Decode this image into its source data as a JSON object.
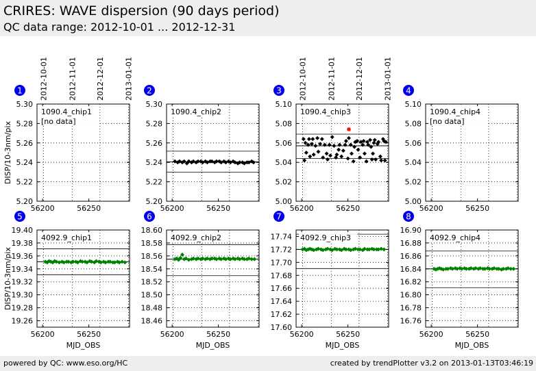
{
  "header": {
    "title": "CRIRES: WAVE dispersion (90 days period)",
    "range": "QC data range: 2012-10-01 ... 2012-12-31"
  },
  "footer": {
    "left": "powered by QC: www.eso.org/HC",
    "right": "created by trendPlotter v3.2 on 2013-01-13T03:46:19"
  },
  "colors": {
    "set1": "#000000",
    "set2": "#008000",
    "outlier": "#ff0000",
    "badge": "#0000ee"
  },
  "date_ticks": [
    "2012-10-01",
    "2012-11-01",
    "2012-12-01",
    "2013-01-01"
  ],
  "chart_data": [
    {
      "type": "scatter",
      "panel": "1",
      "label": "1090.4_chip1",
      "note": "[no data]",
      "ylabel": "DISP/10-3nm/pix",
      "xlabel": "",
      "ylim": [
        5.2,
        5.3
      ],
      "yticks": [
        "5.30",
        "5.28",
        "5.26",
        "5.24",
        "5.22",
        "5.20"
      ],
      "xlim": [
        56194,
        56294
      ],
      "xticks": [
        "56200",
        "56250"
      ],
      "mean": null,
      "band": null,
      "points": [],
      "outliers": []
    },
    {
      "type": "scatter",
      "panel": "2",
      "label": "1090.4_chip2",
      "note": "",
      "ylabel": "",
      "xlabel": "",
      "ylim": [
        5.2,
        5.3
      ],
      "yticks": [
        "5.30",
        "5.28",
        "5.26",
        "5.24",
        "5.22",
        "5.20"
      ],
      "xlim": [
        56194,
        56294
      ],
      "xticks": [
        "56200",
        "56250"
      ],
      "mean": 5.2405,
      "band": [
        5.23,
        5.2515
      ],
      "points": [
        [
          56203,
          5.241
        ],
        [
          56206,
          5.24
        ],
        [
          56208,
          5.241
        ],
        [
          56211,
          5.24
        ],
        [
          56213,
          5.241
        ],
        [
          56216,
          5.239
        ],
        [
          56218,
          5.241
        ],
        [
          56221,
          5.24
        ],
        [
          56223,
          5.241
        ],
        [
          56226,
          5.24
        ],
        [
          56228,
          5.241
        ],
        [
          56231,
          5.241
        ],
        [
          56233,
          5.24
        ],
        [
          56236,
          5.241
        ],
        [
          56238,
          5.24
        ],
        [
          56241,
          5.241
        ],
        [
          56243,
          5.241
        ],
        [
          56246,
          5.24
        ],
        [
          56248,
          5.241
        ],
        [
          56251,
          5.241
        ],
        [
          56253,
          5.24
        ],
        [
          56256,
          5.241
        ],
        [
          56258,
          5.24
        ],
        [
          56261,
          5.241
        ],
        [
          56263,
          5.24
        ],
        [
          56266,
          5.241
        ],
        [
          56268,
          5.24
        ],
        [
          56271,
          5.239
        ],
        [
          56273,
          5.24
        ],
        [
          56276,
          5.24
        ],
        [
          56278,
          5.239
        ],
        [
          56281,
          5.24
        ],
        [
          56283,
          5.24
        ],
        [
          56286,
          5.241
        ],
        [
          56288,
          5.24
        ]
      ],
      "outliers": []
    },
    {
      "type": "scatter",
      "panel": "3",
      "label": "1090.4_chip3",
      "note": "",
      "ylabel": "",
      "xlabel": "",
      "ylim": [
        5.0,
        5.1
      ],
      "yticks": [
        "5.10",
        "5.08",
        "5.06",
        "5.04",
        "5.02",
        "5.00"
      ],
      "xlim": [
        56194,
        56294
      ],
      "xticks": [
        "56200",
        "56250"
      ],
      "mean": 5.057,
      "band": [
        5.044,
        5.069
      ],
      "points": [
        [
          56202,
          5.064
        ],
        [
          56203,
          5.042
        ],
        [
          56204,
          5.06
        ],
        [
          56205,
          5.05
        ],
        [
          56207,
          5.058
        ],
        [
          56208,
          5.064
        ],
        [
          56209,
          5.046
        ],
        [
          56211,
          5.059
        ],
        [
          56212,
          5.064
        ],
        [
          56213,
          5.048
        ],
        [
          56215,
          5.057
        ],
        [
          56217,
          5.065
        ],
        [
          56218,
          5.051
        ],
        [
          56220,
          5.059
        ],
        [
          56222,
          5.064
        ],
        [
          56223,
          5.045
        ],
        [
          56225,
          5.058
        ],
        [
          56227,
          5.049
        ],
        [
          56228,
          5.043
        ],
        [
          56230,
          5.058
        ],
        [
          56231,
          5.047
        ],
        [
          56233,
          5.066
        ],
        [
          56235,
          5.057
        ],
        [
          56237,
          5.045
        ],
        [
          56238,
          5.048
        ],
        [
          56240,
          5.053
        ],
        [
          56241,
          5.058
        ],
        [
          56243,
          5.046
        ],
        [
          56245,
          5.052
        ],
        [
          56247,
          5.058
        ],
        [
          56248,
          5.062
        ],
        [
          56250,
          5.044
        ],
        [
          56251,
          5.065
        ],
        [
          56253,
          5.058
        ],
        [
          56254,
          5.049
        ],
        [
          56256,
          5.041
        ],
        [
          56257,
          5.056
        ],
        [
          56258,
          5.061
        ],
        [
          56260,
          5.062
        ],
        [
          56261,
          5.053
        ],
        [
          56263,
          5.045
        ],
        [
          56264,
          5.061
        ],
        [
          56266,
          5.058
        ],
        [
          56267,
          5.062
        ],
        [
          56268,
          5.049
        ],
        [
          56270,
          5.041
        ],
        [
          56271,
          5.061
        ],
        [
          56272,
          5.058
        ],
        [
          56274,
          5.063
        ],
        [
          56275,
          5.056
        ],
        [
          56276,
          5.043
        ],
        [
          56277,
          5.049
        ],
        [
          56278,
          5.06
        ],
        [
          56279,
          5.063
        ],
        [
          56280,
          5.043
        ],
        [
          56282,
          5.059
        ],
        [
          56283,
          5.061
        ],
        [
          56285,
          5.046
        ],
        [
          56286,
          5.042
        ],
        [
          56288,
          5.064
        ],
        [
          56289,
          5.062
        ],
        [
          56290,
          5.042
        ],
        [
          56291,
          5.061
        ]
      ],
      "outliers": [
        [
          56251,
          5.074
        ]
      ]
    },
    {
      "type": "scatter",
      "panel": "4",
      "label": "1090.4_chip4",
      "note": "[no data]",
      "ylabel": "",
      "xlabel": "",
      "ylim": [
        5.0,
        5.1
      ],
      "yticks": [
        "5.10",
        "5.08",
        "5.06",
        "5.04",
        "5.02",
        "5.00"
      ],
      "xlim": [
        56194,
        56294
      ],
      "xticks": [
        "56200",
        "56250"
      ],
      "mean": null,
      "band": null,
      "points": [],
      "outliers": []
    },
    {
      "type": "scatter",
      "panel": "5",
      "label": "4092.9_chip1",
      "note": "",
      "ylabel": "DISP/10-3nm/pix",
      "xlabel": "MJD_OBS",
      "ylim": [
        19.25,
        19.4
      ],
      "yticks": [
        "19.40",
        "19.38",
        "19.36",
        "19.34",
        "19.32",
        "19.30",
        "19.28",
        "19.26"
      ],
      "xlim": [
        56194,
        56294
      ],
      "xticks": [
        "56200",
        "56250"
      ],
      "mean": 19.351,
      "band": [
        19.331,
        19.371
      ],
      "points": [
        [
          56203,
          19.351
        ],
        [
          56205,
          19.35
        ],
        [
          56207,
          19.352
        ],
        [
          56209,
          19.351
        ],
        [
          56211,
          19.35
        ],
        [
          56213,
          19.352
        ],
        [
          56215,
          19.351
        ],
        [
          56218,
          19.35
        ],
        [
          56221,
          19.351
        ],
        [
          56223,
          19.35
        ],
        [
          56226,
          19.351
        ],
        [
          56228,
          19.351
        ],
        [
          56231,
          19.35
        ],
        [
          56233,
          19.351
        ],
        [
          56236,
          19.351
        ],
        [
          56238,
          19.35
        ],
        [
          56241,
          19.352
        ],
        [
          56243,
          19.351
        ],
        [
          56246,
          19.351
        ],
        [
          56248,
          19.35
        ],
        [
          56251,
          19.352
        ],
        [
          56253,
          19.351
        ],
        [
          56256,
          19.35
        ],
        [
          56258,
          19.352
        ],
        [
          56261,
          19.351
        ],
        [
          56263,
          19.35
        ],
        [
          56266,
          19.351
        ],
        [
          56268,
          19.35
        ],
        [
          56271,
          19.351
        ],
        [
          56273,
          19.351
        ],
        [
          56276,
          19.35
        ],
        [
          56278,
          19.35
        ],
        [
          56281,
          19.351
        ],
        [
          56283,
          19.35
        ],
        [
          56286,
          19.351
        ],
        [
          56289,
          19.35
        ]
      ],
      "outliers": []
    },
    {
      "type": "scatter",
      "panel": "6",
      "label": "4092.9_chip2",
      "note": "",
      "ylabel": "",
      "xlabel": "MJD_OBS",
      "ylim": [
        18.45,
        18.6
      ],
      "yticks": [
        "18.60",
        "18.58",
        "18.56",
        "18.54",
        "18.52",
        "18.50",
        "18.48",
        "18.46"
      ],
      "xlim": [
        56194,
        56294
      ],
      "xticks": [
        "56200",
        "56250"
      ],
      "mean": 18.555,
      "band": [
        18.5295,
        18.5775
      ],
      "points": [
        [
          56203,
          18.555
        ],
        [
          56205,
          18.556
        ],
        [
          56207,
          18.554
        ],
        [
          56209,
          18.557
        ],
        [
          56211,
          18.562
        ],
        [
          56213,
          18.555
        ],
        [
          56215,
          18.556
        ],
        [
          56218,
          18.554
        ],
        [
          56221,
          18.555
        ],
        [
          56223,
          18.556
        ],
        [
          56226,
          18.555
        ],
        [
          56228,
          18.556
        ],
        [
          56231,
          18.555
        ],
        [
          56233,
          18.556
        ],
        [
          56236,
          18.555
        ],
        [
          56238,
          18.556
        ],
        [
          56241,
          18.555
        ],
        [
          56243,
          18.556
        ],
        [
          56246,
          18.556
        ],
        [
          56248,
          18.555
        ],
        [
          56251,
          18.556
        ],
        [
          56253,
          18.555
        ],
        [
          56256,
          18.556
        ],
        [
          56258,
          18.555
        ],
        [
          56261,
          18.556
        ],
        [
          56263,
          18.555
        ],
        [
          56266,
          18.556
        ],
        [
          56268,
          18.555
        ],
        [
          56271,
          18.556
        ],
        [
          56273,
          18.555
        ],
        [
          56276,
          18.556
        ],
        [
          56278,
          18.555
        ],
        [
          56281,
          18.555
        ],
        [
          56283,
          18.556
        ],
        [
          56286,
          18.555
        ],
        [
          56289,
          18.555
        ]
      ],
      "outliers": []
    },
    {
      "type": "scatter",
      "panel": "7",
      "label": "4092.9_chip3",
      "note": "",
      "ylabel": "",
      "xlabel": "MJD_OBS",
      "ylim": [
        17.6,
        17.75
      ],
      "yticks": [
        "17.74",
        "17.72",
        "17.70",
        "17.68",
        "17.66",
        "17.64",
        "17.62",
        "17.60"
      ],
      "xlim": [
        56194,
        56294
      ],
      "xticks": [
        "56200",
        "56250"
      ],
      "mean": 17.72,
      "band": [
        17.6905,
        17.7435
      ],
      "points": [
        [
          56201,
          17.72
        ],
        [
          56203,
          17.721
        ],
        [
          56205,
          17.719
        ],
        [
          56207,
          17.72
        ],
        [
          56209,
          17.721
        ],
        [
          56211,
          17.72
        ],
        [
          56213,
          17.719
        ],
        [
          56216,
          17.72
        ],
        [
          56218,
          17.721
        ],
        [
          56221,
          17.72
        ],
        [
          56223,
          17.719
        ],
        [
          56226,
          17.72
        ],
        [
          56228,
          17.721
        ],
        [
          56231,
          17.72
        ],
        [
          56233,
          17.719
        ],
        [
          56236,
          17.721
        ],
        [
          56238,
          17.72
        ],
        [
          56241,
          17.72
        ],
        [
          56243,
          17.719
        ],
        [
          56246,
          17.721
        ],
        [
          56248,
          17.72
        ],
        [
          56251,
          17.72
        ],
        [
          56253,
          17.719
        ],
        [
          56256,
          17.72
        ],
        [
          56258,
          17.721
        ],
        [
          56261,
          17.72
        ],
        [
          56263,
          17.72
        ],
        [
          56266,
          17.719
        ],
        [
          56268,
          17.721
        ],
        [
          56271,
          17.72
        ],
        [
          56273,
          17.72
        ],
        [
          56276,
          17.721
        ],
        [
          56278,
          17.72
        ],
        [
          56281,
          17.72
        ],
        [
          56283,
          17.72
        ],
        [
          56286,
          17.721
        ],
        [
          56289,
          17.72
        ]
      ],
      "outliers": []
    },
    {
      "type": "scatter",
      "panel": "8",
      "label": "4092.9_chip4",
      "note": "",
      "ylabel": "",
      "xlabel": "MJD_OBS",
      "ylim": [
        16.75,
        16.9
      ],
      "yticks": [
        "16.90",
        "16.88",
        "16.86",
        "16.84",
        "16.82",
        "16.80",
        "16.78",
        "16.76"
      ],
      "xlim": [
        56194,
        56294
      ],
      "xticks": [
        "56200",
        "56250"
      ],
      "mean": 16.84,
      "band": [
        16.811,
        16.8675
      ],
      "points": [
        [
          56203,
          16.84
        ],
        [
          56205,
          16.839
        ],
        [
          56207,
          16.84
        ],
        [
          56209,
          16.841
        ],
        [
          56211,
          16.84
        ],
        [
          56213,
          16.839
        ],
        [
          56216,
          16.84
        ],
        [
          56218,
          16.84
        ],
        [
          56221,
          16.841
        ],
        [
          56223,
          16.84
        ],
        [
          56226,
          16.841
        ],
        [
          56228,
          16.84
        ],
        [
          56231,
          16.841
        ],
        [
          56233,
          16.84
        ],
        [
          56236,
          16.841
        ],
        [
          56238,
          16.84
        ],
        [
          56241,
          16.84
        ],
        [
          56243,
          16.841
        ],
        [
          56246,
          16.84
        ],
        [
          56248,
          16.841
        ],
        [
          56251,
          16.84
        ],
        [
          56253,
          16.841
        ],
        [
          56256,
          16.84
        ],
        [
          56258,
          16.84
        ],
        [
          56261,
          16.841
        ],
        [
          56263,
          16.84
        ],
        [
          56266,
          16.84
        ],
        [
          56268,
          16.841
        ],
        [
          56271,
          16.84
        ],
        [
          56273,
          16.84
        ],
        [
          56276,
          16.839
        ],
        [
          56278,
          16.84
        ],
        [
          56281,
          16.84
        ],
        [
          56283,
          16.841
        ],
        [
          56286,
          16.84
        ],
        [
          56289,
          16.84
        ]
      ],
      "outliers": []
    }
  ]
}
